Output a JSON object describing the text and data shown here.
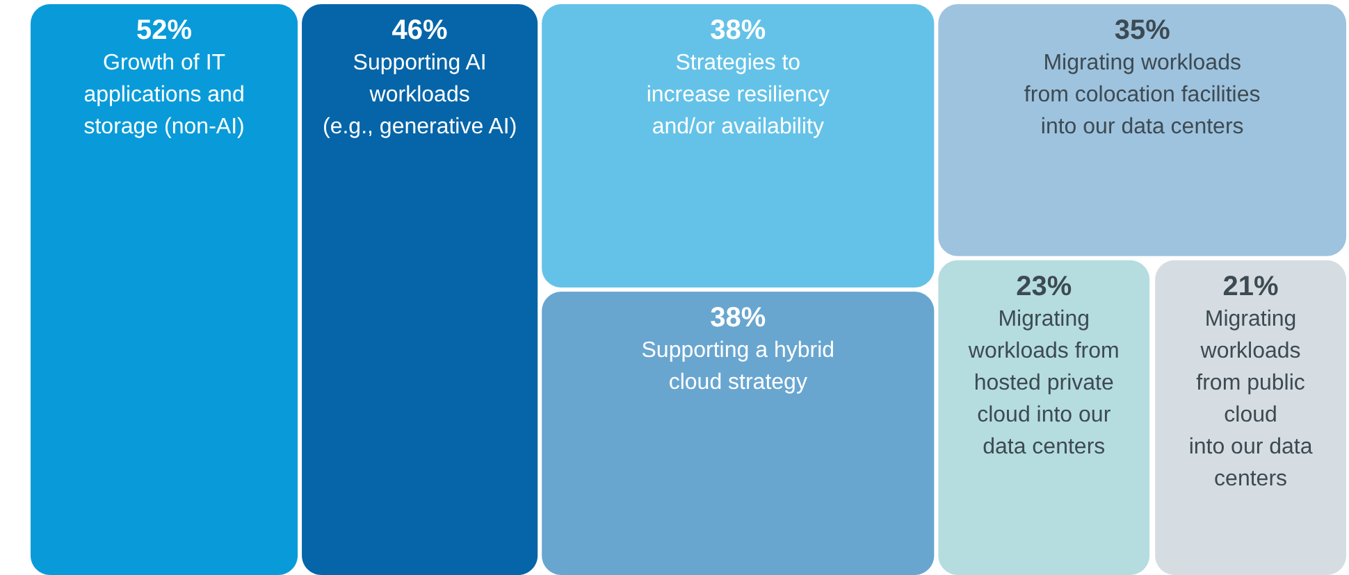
{
  "chart_data": {
    "type": "other",
    "categories": [
      "Growth of IT applications and storage (non-AI)",
      "Supporting AI workloads (e.g., generative AI)",
      "Strategies to increase resiliency and/or availability",
      "Supporting a hybrid cloud strategy",
      "Migrating workloads from colocation facilities into our data centers",
      "Migrating workloads from hosted private cloud into our data centers",
      "Migrating workloads from public cloud into our data centers"
    ],
    "values": [
      52,
      46,
      38,
      38,
      35,
      23,
      21
    ],
    "value_labels": [
      "52%",
      "46%",
      "38%",
      "38%",
      "35%",
      "23%",
      "21%"
    ],
    "colors": [
      "#099bd9",
      "#0565a8",
      "#64c2e8",
      "#68a6d0",
      "#9ec3de",
      "#b5dde0",
      "#d5dde2"
    ]
  }
}
